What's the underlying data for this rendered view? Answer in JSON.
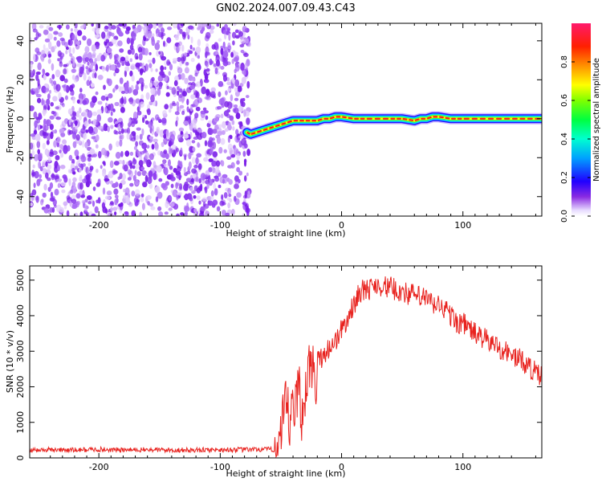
{
  "title": "GN02.2024.007.09.43.C43",
  "chart_data": [
    {
      "type": "heatmap",
      "name": "spectrogram",
      "title": "GN02.2024.007.09.43.C43",
      "xlabel": "Height of straight line (km)",
      "ylabel": "Frequency (Hz)",
      "xlim": [
        -257,
        165
      ],
      "ylim": [
        -50,
        49
      ],
      "x_ticks": [
        -200,
        -100,
        0,
        100
      ],
      "y_ticks": [
        -40,
        -20,
        0,
        20,
        40
      ],
      "x_tick_labels": [
        "-200",
        "-100",
        "0",
        "100"
      ],
      "y_tick_labels": [
        "-40",
        "-20",
        "0",
        "20",
        "40"
      ],
      "noise_region": {
        "x_from": -257,
        "x_to": -76,
        "description_values": "scattered low-amplitude speckle 0.0-0.3"
      },
      "signal_track": {
        "x": [
          -78,
          -75,
          -70,
          -65,
          -60,
          -55,
          -50,
          -45,
          -40,
          -35,
          -30,
          -25,
          -20,
          -15,
          -10,
          -5,
          0,
          10,
          20,
          40,
          50,
          60,
          65,
          70,
          75,
          80,
          90,
          100,
          120,
          140,
          165
        ],
        "frequency_hz": [
          -7,
          -8,
          -7,
          -6,
          -5,
          -4,
          -3,
          -2,
          -1,
          -1,
          -1,
          -1,
          -1,
          0,
          0,
          1,
          1,
          0,
          0,
          0,
          0,
          -1,
          0,
          0,
          1,
          1,
          0,
          0,
          0,
          0,
          0
        ],
        "peak_amplitude": 0.95
      },
      "colorbar": {
        "label": "Normalized spectral amplitude",
        "range": [
          0,
          1
        ],
        "ticks": [
          0.0,
          0.2,
          0.4,
          0.6,
          0.8
        ],
        "tick_labels": [
          "0.0",
          "0.2",
          "0.4",
          "0.6",
          "0.8"
        ],
        "colors": [
          "#ffffff",
          "#b48cff",
          "#6a00e8",
          "#0000ff",
          "#00ffff",
          "#00ff00",
          "#ffff00",
          "#ff8000",
          "#ff0000",
          "#ff1a6c"
        ]
      }
    },
    {
      "type": "line",
      "name": "snr",
      "xlabel": "Height of straight line (km)",
      "ylabel": "SNR (10 * v/v)",
      "xlim": [
        -257,
        165
      ],
      "ylim": [
        0,
        5400
      ],
      "x_ticks": [
        -200,
        -100,
        0,
        100
      ],
      "y_ticks": [
        0,
        1000,
        2000,
        3000,
        4000,
        5000
      ],
      "x_tick_labels": [
        "-200",
        "-100",
        "0",
        "100"
      ],
      "y_tick_labels": [
        "0",
        "1000",
        "2000",
        "3000",
        "4000",
        "5000"
      ],
      "series": [
        {
          "name": "SNR",
          "color": "#e8221e",
          "x": [
            -257,
            -240,
            -220,
            -200,
            -180,
            -160,
            -140,
            -120,
            -100,
            -80,
            -60,
            -56,
            -52,
            -50,
            -48,
            -45,
            -42,
            -40,
            -38,
            -35,
            -32,
            -30,
            -28,
            -25,
            -22,
            -20,
            -15,
            -10,
            -5,
            0,
            5,
            10,
            15,
            20,
            25,
            30,
            35,
            40,
            45,
            50,
            55,
            60,
            65,
            70,
            75,
            80,
            85,
            90,
            95,
            100,
            110,
            120,
            130,
            140,
            150,
            160,
            165
          ],
          "y": [
            220,
            230,
            220,
            240,
            220,
            230,
            220,
            220,
            230,
            230,
            240,
            230,
            250,
            400,
            1000,
            1500,
            700,
            1700,
            1200,
            2200,
            900,
            2000,
            2400,
            2500,
            2100,
            2700,
            2900,
            3100,
            3300,
            3600,
            3900,
            4300,
            4700,
            4700,
            4800,
            4900,
            4800,
            4800,
            4700,
            4700,
            4600,
            4600,
            4500,
            4500,
            4300,
            4300,
            4200,
            4000,
            3800,
            3800,
            3500,
            3300,
            3100,
            2900,
            2700,
            2400,
            2250
          ]
        }
      ]
    }
  ]
}
